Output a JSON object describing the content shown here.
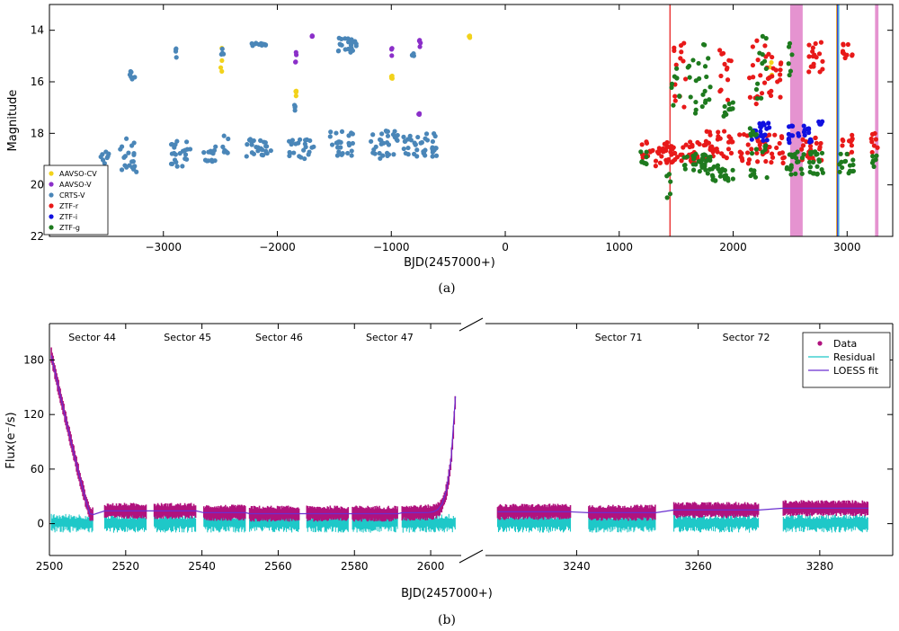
{
  "chart_data": [
    {
      "id": "a",
      "type": "scatter",
      "caption": "(a)",
      "xlabel": "BJD(2457000+)",
      "ylabel": "Magnitude",
      "xlim": [
        -4000,
        3400
      ],
      "ylim": [
        22,
        13
      ],
      "y_inverted": true,
      "x_ticks": [
        -3000,
        -2000,
        -1000,
        0,
        1000,
        2000,
        3000
      ],
      "x_tick_labels": [
        "−3000",
        "−2000",
        "−1000",
        "0",
        "1000",
        "2000",
        "3000"
      ],
      "y_ticks": [
        14,
        16,
        18,
        20,
        22
      ],
      "y_tick_labels": [
        "14",
        "16",
        "18",
        "20",
        "22"
      ],
      "legend_position": "bottom-left",
      "series": [
        {
          "name": "AAVSO-CV",
          "color": "#f2d21b",
          "clusters": [
            {
              "x": [
                -2500,
                -2480
              ],
              "y": [
                14.3,
                15.6
              ]
            },
            {
              "x": [
                -1850,
                -1830
              ],
              "y": [
                16.3,
                16.6
              ]
            },
            {
              "x": [
                -1000,
                -990
              ],
              "y": [
                15.7,
                15.9
              ]
            },
            {
              "x": [
                -320,
                -310
              ],
              "y": [
                14.2,
                14.3
              ]
            },
            {
              "x": [
                2320,
                2340
              ],
              "y": [
                14.8,
                16.8
              ]
            }
          ]
        },
        {
          "name": "AAVSO-V",
          "color": "#8b2fc9",
          "clusters": [
            {
              "x": [
                -1850,
                -1830
              ],
              "y": [
                14.8,
                15.3
              ]
            },
            {
              "x": [
                -1700,
                -1690
              ],
              "y": [
                14.2,
                14.3
              ]
            },
            {
              "x": [
                -1000,
                -990
              ],
              "y": [
                14.7,
                15.0
              ]
            },
            {
              "x": [
                -760,
                -740
              ],
              "y": [
                14.3,
                14.7
              ]
            },
            {
              "x": [
                -760,
                -750
              ],
              "y": [
                17.2,
                17.3
              ]
            }
          ]
        },
        {
          "name": "CRTS-V",
          "color": "#4a86b8",
          "clusters": [
            {
              "x": [
                -3550,
                -3480
              ],
              "y": [
                18.4,
                19.2
              ]
            },
            {
              "x": [
                -3380,
                -3200
              ],
              "y": [
                18.2,
                19.5
              ]
            },
            {
              "x": [
                -3300,
                -3250
              ],
              "y": [
                15.4,
                16.0
              ]
            },
            {
              "x": [
                -2950,
                -2750
              ],
              "y": [
                18.3,
                19.3
              ]
            },
            {
              "x": [
                -2900,
                -2880
              ],
              "y": [
                14.3,
                15.5
              ]
            },
            {
              "x": [
                -2650,
                -2540
              ],
              "y": [
                18.5,
                19.1
              ]
            },
            {
              "x": [
                -2500,
                -2470
              ],
              "y": [
                14.7,
                15.0
              ]
            },
            {
              "x": [
                -2480,
                -2420
              ],
              "y": [
                18.0,
                18.8
              ]
            },
            {
              "x": [
                -2280,
                -2050
              ],
              "y": [
                18.2,
                18.9
              ]
            },
            {
              "x": [
                -2230,
                -2100
              ],
              "y": [
                14.5,
                14.6
              ]
            },
            {
              "x": [
                -1900,
                -1680
              ],
              "y": [
                18.2,
                19.0
              ]
            },
            {
              "x": [
                -1850,
                -1830
              ],
              "y": [
                16.8,
                17.2
              ]
            },
            {
              "x": [
                -1550,
                -1330
              ],
              "y": [
                17.9,
                18.9
              ]
            },
            {
              "x": [
                -1490,
                -1300
              ],
              "y": [
                14.3,
                14.9
              ]
            },
            {
              "x": [
                -1180,
                -930
              ],
              "y": [
                17.9,
                19.0
              ]
            },
            {
              "x": [
                -950,
                -600
              ],
              "y": [
                18.0,
                18.9
              ]
            },
            {
              "x": [
                -820,
                -800
              ],
              "y": [
                14.9,
                15.0
              ]
            }
          ]
        },
        {
          "name": "ZTF-r",
          "color": "#e81919",
          "clusters": [
            {
              "x": [
                1180,
                1440
              ],
              "y": [
                18.3,
                19.3
              ]
            },
            {
              "x": [
                1450,
                1800
              ],
              "y": [
                18.3,
                19.2
              ]
            },
            {
              "x": [
                1480,
                1600
              ],
              "y": [
                14.5,
                17.3
              ]
            },
            {
              "x": [
                1750,
                2000
              ],
              "y": [
                17.9,
                19.0
              ]
            },
            {
              "x": [
                1880,
                1990
              ],
              "y": [
                14.5,
                16.9
              ]
            },
            {
              "x": [
                2050,
                2450
              ],
              "y": [
                18.0,
                19.2
              ]
            },
            {
              "x": [
                2140,
                2440
              ],
              "y": [
                14.4,
                17.0
              ]
            },
            {
              "x": [
                2600,
                2780
              ],
              "y": [
                18.1,
                19.1
              ]
            },
            {
              "x": [
                2640,
                2790
              ],
              "y": [
                14.4,
                15.8
              ]
            },
            {
              "x": [
                2950,
                3050
              ],
              "y": [
                18.0,
                18.9
              ]
            },
            {
              "x": [
                2960,
                3050
              ],
              "y": [
                14.5,
                15.1
              ]
            },
            {
              "x": [
                3200,
                3270
              ],
              "y": [
                18.0,
                18.8
              ]
            }
          ]
        },
        {
          "name": "ZTF-i",
          "color": "#1010e0",
          "clusters": [
            {
              "x": [
                2150,
                2330
              ],
              "y": [
                17.6,
                18.3
              ]
            },
            {
              "x": [
                2480,
                2700
              ],
              "y": [
                17.7,
                18.4
              ]
            },
            {
              "x": [
                2750,
                2800
              ],
              "y": [
                17.5,
                17.8
              ]
            }
          ]
        },
        {
          "name": "ZTF-g",
          "color": "#1e7a1e",
          "clusters": [
            {
              "x": [
                1180,
                1250
              ],
              "y": [
                18.7,
                19.2
              ]
            },
            {
              "x": [
                1410,
                1450
              ],
              "y": [
                19.5,
                20.5
              ]
            },
            {
              "x": [
                1450,
                1530
              ],
              "y": [
                15.3,
                17.0
              ]
            },
            {
              "x": [
                1550,
                1800
              ],
              "y": [
                18.8,
                19.5
              ]
            },
            {
              "x": [
                1600,
                1800
              ],
              "y": [
                14.5,
                17.5
              ]
            },
            {
              "x": [
                1750,
                2000
              ],
              "y": [
                19.2,
                19.9
              ]
            },
            {
              "x": [
                1900,
                2000
              ],
              "y": [
                16.8,
                17.5
              ]
            },
            {
              "x": [
                2130,
                2300
              ],
              "y": [
                17.8,
                20.0
              ]
            },
            {
              "x": [
                2200,
                2300
              ],
              "y": [
                14.2,
                17.0
              ]
            },
            {
              "x": [
                2450,
                2800
              ],
              "y": [
                18.7,
                19.6
              ]
            },
            {
              "x": [
                2480,
                2530
              ],
              "y": [
                14.5,
                15.8
              ]
            },
            {
              "x": [
                2930,
                3060
              ],
              "y": [
                18.8,
                19.6
              ]
            },
            {
              "x": [
                3210,
                3260
              ],
              "y": [
                18.8,
                19.5
              ]
            }
          ]
        }
      ],
      "vertical_bands": [
        {
          "x": [
            1440,
            1448
          ],
          "color": "#e81919"
        },
        {
          "x": [
            2500,
            2610
          ],
          "color": "#e080c8"
        },
        {
          "x": [
            2903,
            2912
          ],
          "color": "#e6a319"
        },
        {
          "x": [
            2912,
            2920
          ],
          "color": "#1010e0"
        },
        {
          "x": [
            2920,
            2926
          ],
          "color": "#3cb4d8"
        },
        {
          "x": [
            3245,
            3275
          ],
          "color": "#e080c8"
        }
      ]
    },
    {
      "id": "b",
      "type": "line",
      "caption": "(b)",
      "xlabel": "BJD(2457000+)",
      "ylabel": "Flux(e⁻/s)",
      "broken_x_axis": true,
      "ylim": [
        -35,
        220
      ],
      "y_ticks": [
        0,
        60,
        120,
        180
      ],
      "y_tick_labels": [
        "0",
        "60",
        "120",
        "180"
      ],
      "left_segment": {
        "xlim": [
          2500,
          2608
        ],
        "x_ticks": [
          2500,
          2520,
          2540,
          2560,
          2580,
          2600
        ],
        "x_tick_labels": [
          "2500",
          "2520",
          "2540",
          "2560",
          "2580",
          "2600"
        ]
      },
      "right_segment": {
        "xlim": [
          3225,
          3292
        ],
        "x_ticks": [
          3240,
          3260,
          3280
        ],
        "x_tick_labels": [
          "3240",
          "3260",
          "3280"
        ]
      },
      "sector_labels": [
        {
          "text": "Sector 44",
          "x": 2505
        },
        {
          "text": "Sector 45",
          "x": 2530
        },
        {
          "text": "Sector 46",
          "x": 2554
        },
        {
          "text": "Sector 47",
          "x": 2583
        },
        {
          "text": "Sector 71",
          "x": 3243
        },
        {
          "text": "Sector 72",
          "x": 3264
        }
      ],
      "legend_position": "top-right",
      "series": [
        {
          "name": "Data",
          "color": "#b0127e",
          "segments": [
            {
              "x": [
                2500.5,
                2511.5
              ],
              "shape": "decay",
              "from": 185,
              "to": 10
            },
            {
              "x": [
                2514.5,
                2525.5
              ],
              "level": 14
            },
            {
              "x": [
                2527.5,
                2538.5
              ],
              "level": 14
            },
            {
              "x": [
                2540.5,
                2551.5
              ],
              "level": 12
            },
            {
              "x": [
                2552.5,
                2565.5
              ],
              "level": 11
            },
            {
              "x": [
                2567.5,
                2578.5
              ],
              "level": 11
            },
            {
              "x": [
                2579.5,
                2591.5
              ],
              "level": 11
            },
            {
              "x": [
                2592.5,
                2606.5
              ],
              "shape": "rise",
              "from": 12,
              "to": 140
            },
            {
              "x": [
                3227,
                3239
              ],
              "level": 13
            },
            {
              "x": [
                3242,
                3253
              ],
              "level": 12
            },
            {
              "x": [
                3256,
                3270
              ],
              "level": 15
            },
            {
              "x": [
                3274,
                3288
              ],
              "level": 17
            }
          ]
        },
        {
          "name": "Residual",
          "color": "#1ec8c8",
          "level": 0
        },
        {
          "name": "LOESS fit",
          "color": "#6a2fd0"
        }
      ]
    }
  ]
}
